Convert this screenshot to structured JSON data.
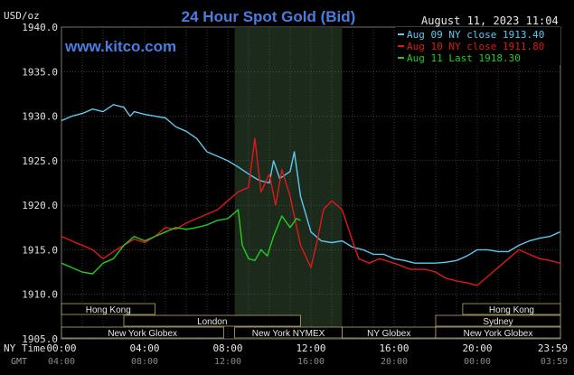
{
  "header": {
    "units": "USD/oz",
    "title": "24 Hour Spot Gold (Bid)",
    "timestamp": "August 11, 2023 11:04",
    "watermark": "www.kitco.com"
  },
  "chart_data": {
    "type": "line",
    "title": "24 Hour Spot Gold (Bid)",
    "ylabel": "USD/oz",
    "ylim": [
      1905,
      1940
    ],
    "y_ticks": [
      "1905.0",
      "1910.0",
      "1915.0",
      "1920.0",
      "1925.0",
      "1930.0",
      "1935.0",
      "1940.0"
    ],
    "x_range_hours": [
      0,
      24
    ],
    "x_ticks_ny_label": "NY Time",
    "x_ticks_ny": [
      "00:00",
      "04:00",
      "08:00",
      "12:00",
      "16:00",
      "20:00",
      "23:59"
    ],
    "x_ticks_gmt_label": "GMT",
    "x_ticks_gmt": [
      "04:00",
      "08:00",
      "12:00",
      "16:00",
      "20:00",
      "00:00",
      "03:59"
    ],
    "highlight_hours": [
      8.33,
      13.5
    ],
    "grid": true,
    "legend_position": "top-right",
    "series": [
      {
        "name": "Aug 09 NY close 1913.40",
        "color": "#5fc8f0",
        "points": [
          [
            0,
            1929.5
          ],
          [
            0.5,
            1930
          ],
          [
            1,
            1930.3
          ],
          [
            1.5,
            1930.8
          ],
          [
            2,
            1930.5
          ],
          [
            2.5,
            1931.3
          ],
          [
            3,
            1931
          ],
          [
            3.3,
            1930
          ],
          [
            3.5,
            1930.5
          ],
          [
            4,
            1930.2
          ],
          [
            4.5,
            1930
          ],
          [
            5,
            1929.8
          ],
          [
            5.5,
            1928.8
          ],
          [
            6,
            1928.3
          ],
          [
            6.5,
            1927.5
          ],
          [
            7,
            1926
          ],
          [
            7.5,
            1925.5
          ],
          [
            8,
            1925
          ],
          [
            8.5,
            1924.3
          ],
          [
            9,
            1923.5
          ],
          [
            9.5,
            1922.8
          ],
          [
            10,
            1922.5
          ],
          [
            10.2,
            1925
          ],
          [
            10.5,
            1923
          ],
          [
            11,
            1923.8
          ],
          [
            11.2,
            1926
          ],
          [
            11.5,
            1921
          ],
          [
            12,
            1917
          ],
          [
            12.5,
            1916
          ],
          [
            13,
            1915.8
          ],
          [
            13.5,
            1916
          ],
          [
            14,
            1915.3
          ],
          [
            14.5,
            1915
          ],
          [
            15,
            1914.5
          ],
          [
            15.5,
            1914.5
          ],
          [
            16,
            1914
          ],
          [
            16.5,
            1913.8
          ],
          [
            17,
            1913.5
          ],
          [
            17.5,
            1913.5
          ],
          [
            18,
            1913.5
          ],
          [
            18.5,
            1913.6
          ],
          [
            19,
            1913.8
          ],
          [
            19.5,
            1914.3
          ],
          [
            20,
            1915
          ],
          [
            20.5,
            1915
          ],
          [
            21,
            1914.8
          ],
          [
            21.5,
            1914.8
          ],
          [
            22,
            1915.5
          ],
          [
            22.5,
            1916
          ],
          [
            23,
            1916.3
          ],
          [
            23.5,
            1916.5
          ],
          [
            23.98,
            1917
          ]
        ]
      },
      {
        "name": "Aug 10 NY close 1911.80",
        "color": "#e01818",
        "points": [
          [
            0,
            1916.5
          ],
          [
            0.5,
            1916
          ],
          [
            1,
            1915.5
          ],
          [
            1.5,
            1915
          ],
          [
            2,
            1914
          ],
          [
            2.5,
            1914.8
          ],
          [
            3,
            1915.5
          ],
          [
            3.5,
            1916.2
          ],
          [
            4,
            1915.8
          ],
          [
            4.5,
            1916.5
          ],
          [
            5,
            1917.5
          ],
          [
            5.5,
            1917.3
          ],
          [
            6,
            1918
          ],
          [
            6.5,
            1918.5
          ],
          [
            7,
            1919
          ],
          [
            7.5,
            1919.5
          ],
          [
            8,
            1920.5
          ],
          [
            8.5,
            1921.5
          ],
          [
            9,
            1922
          ],
          [
            9.3,
            1927.5
          ],
          [
            9.6,
            1921.5
          ],
          [
            10,
            1923.5
          ],
          [
            10.3,
            1920
          ],
          [
            10.6,
            1924
          ],
          [
            11,
            1921
          ],
          [
            11.5,
            1915.5
          ],
          [
            12,
            1913
          ],
          [
            12.3,
            1916
          ],
          [
            12.6,
            1919.5
          ],
          [
            13,
            1920.5
          ],
          [
            13.5,
            1919.5
          ],
          [
            14,
            1916
          ],
          [
            14.3,
            1914
          ],
          [
            14.8,
            1913.5
          ],
          [
            15.3,
            1914
          ],
          [
            16,
            1913.5
          ],
          [
            16.8,
            1912.8
          ],
          [
            17.5,
            1912.8
          ],
          [
            18,
            1912.5
          ],
          [
            18.5,
            1911.8
          ],
          [
            19,
            1911.5
          ],
          [
            19.5,
            1911.3
          ],
          [
            20,
            1911
          ],
          [
            20.5,
            1912
          ],
          [
            21,
            1913
          ],
          [
            21.5,
            1914
          ],
          [
            22,
            1915
          ],
          [
            22.5,
            1914.5
          ],
          [
            23,
            1914
          ],
          [
            23.5,
            1913.8
          ],
          [
            23.98,
            1913.5
          ]
        ]
      },
      {
        "name": "Aug 11 Last 1918.30",
        "color": "#22cc22",
        "points": [
          [
            0,
            1913.5
          ],
          [
            0.5,
            1913
          ],
          [
            1,
            1912.5
          ],
          [
            1.5,
            1912.3
          ],
          [
            2,
            1913.5
          ],
          [
            2.5,
            1914
          ],
          [
            3,
            1915.5
          ],
          [
            3.5,
            1916.5
          ],
          [
            4,
            1916
          ],
          [
            4.5,
            1916.5
          ],
          [
            5,
            1917
          ],
          [
            5.5,
            1917.5
          ],
          [
            6,
            1917.3
          ],
          [
            6.5,
            1917.5
          ],
          [
            7,
            1917.8
          ],
          [
            7.5,
            1918.3
          ],
          [
            8,
            1918.5
          ],
          [
            8.5,
            1919.5
          ],
          [
            8.7,
            1915.5
          ],
          [
            9,
            1914
          ],
          [
            9.3,
            1913.8
          ],
          [
            9.6,
            1915
          ],
          [
            9.9,
            1914.3
          ],
          [
            10.2,
            1916.5
          ],
          [
            10.6,
            1918.8
          ],
          [
            11,
            1917.5
          ],
          [
            11.3,
            1918.5
          ],
          [
            11.5,
            1918.3
          ]
        ]
      }
    ]
  },
  "sessions": [
    {
      "label": "Hong Kong",
      "start": 0,
      "end": 4.5,
      "row": 0
    },
    {
      "label": "Hong Kong",
      "start": 19.3,
      "end": 24,
      "row": 0
    },
    {
      "label": "London",
      "start": 3,
      "end": 11.5,
      "row": 1
    },
    {
      "label": "Sydney",
      "start": 18,
      "end": 24,
      "row": 1
    },
    {
      "label": "New York Globex",
      "start": 0,
      "end": 7.8,
      "row": 2
    },
    {
      "label": "New York NYMEX",
      "start": 8.33,
      "end": 13.5,
      "row": 2
    },
    {
      "label": "NY Globex",
      "start": 13.5,
      "end": 18,
      "row": 2
    },
    {
      "label": "New York Globex",
      "start": 18,
      "end": 24,
      "row": 2
    }
  ]
}
